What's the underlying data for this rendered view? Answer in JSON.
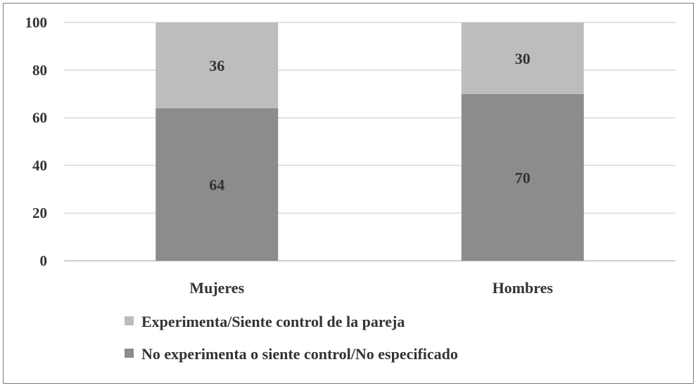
{
  "chart_data": {
    "type": "bar",
    "stacked": true,
    "categories": [
      "Mujeres",
      "Hombres"
    ],
    "series": [
      {
        "name": "No experimenta o siente control/No especificado",
        "values": [
          64,
          70
        ],
        "color": "#8c8c8c"
      },
      {
        "name": "Experimenta/Siente control de la pareja",
        "values": [
          36,
          30
        ],
        "color": "#bdbdbd"
      }
    ],
    "yticks": [
      "0",
      "20",
      "40",
      "60",
      "80",
      "100"
    ],
    "ylim": [
      0,
      100
    ],
    "grid": true,
    "legend_position": "bottom",
    "title": "",
    "xlabel": "",
    "ylabel": ""
  }
}
